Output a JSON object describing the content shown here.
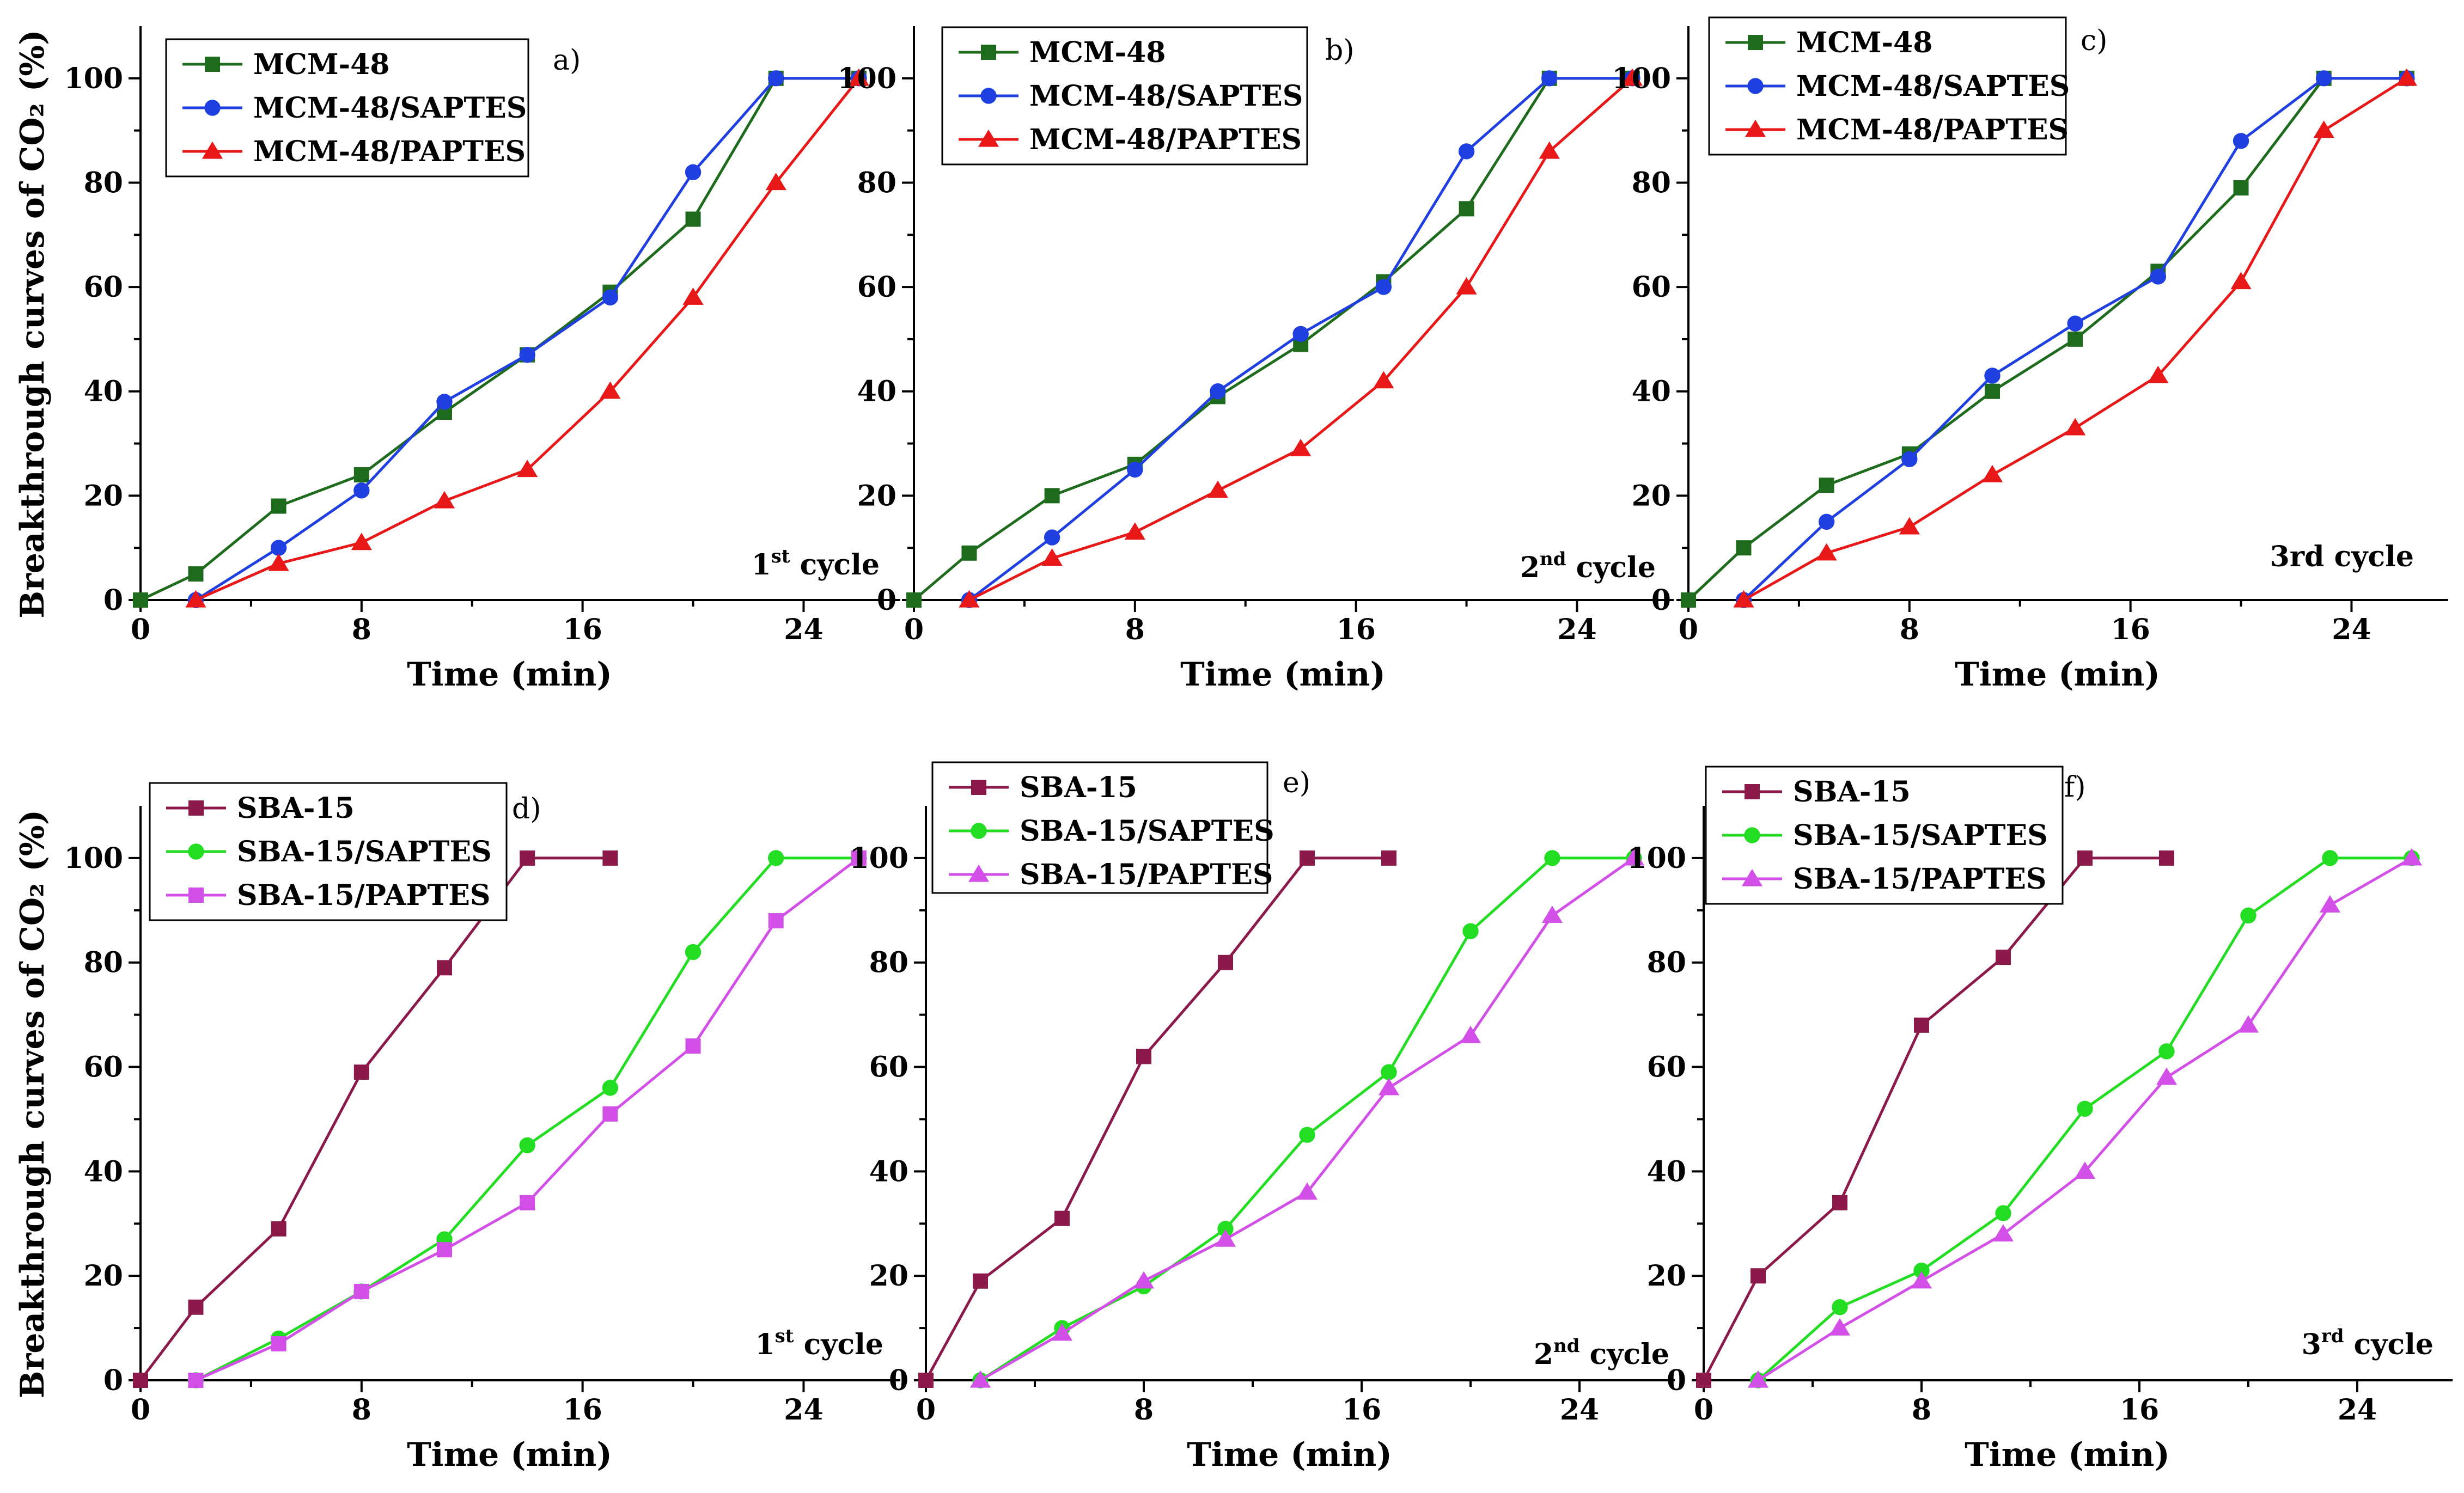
{
  "figure": {
    "ylabel": "Breakthrough curves of CO₂ (%)"
  },
  "chart_data": [
    {
      "type": "line",
      "panel": "a)",
      "cycle_label": {
        "main": "1",
        "sup": "st",
        "rest": " cycle"
      },
      "xlabel": "Time (min)",
      "ylabel": "Breakthrough curves of CO₂ (%)",
      "xlim": [
        0,
        27.5
      ],
      "ylim": [
        0,
        110
      ],
      "xticks": [
        0,
        8,
        16,
        24
      ],
      "yticks": [
        0,
        20,
        40,
        60,
        80,
        100
      ],
      "legend_position": "top-left",
      "series": [
        {
          "name": "MCM-48",
          "color": "#1e6b1e",
          "marker": "square",
          "x": [
            0,
            2,
            5,
            8,
            11,
            14,
            17,
            20,
            23,
            26
          ],
          "y": [
            0,
            5,
            18,
            24,
            36,
            47,
            59,
            73,
            100,
            100
          ]
        },
        {
          "name": "MCM-48/SAPTES",
          "color": "#1f3fe0",
          "marker": "circle",
          "x": [
            2,
            5,
            8,
            11,
            14,
            17,
            20,
            23,
            26
          ],
          "y": [
            0,
            10,
            21,
            38,
            47,
            58,
            82,
            100,
            100
          ]
        },
        {
          "name": "MCM-48/PAPTES",
          "color": "#e81818",
          "marker": "triangle",
          "x": [
            2,
            5,
            8,
            11,
            14,
            17,
            20,
            23,
            26
          ],
          "y": [
            0,
            7,
            11,
            19,
            25,
            40,
            58,
            80,
            100
          ]
        }
      ]
    },
    {
      "type": "line",
      "panel": "b)",
      "cycle_label": {
        "main": "2",
        "sup": "nd",
        "rest": " cycle"
      },
      "xlabel": "Time (min)",
      "ylabel": "",
      "xlim": [
        0,
        27.5
      ],
      "ylim": [
        0,
        110
      ],
      "xticks": [
        0,
        8,
        16,
        24
      ],
      "yticks": [
        0,
        20,
        40,
        60,
        80,
        100
      ],
      "legend_position": "top-left",
      "series": [
        {
          "name": "MCM-48",
          "color": "#1e6b1e",
          "marker": "square",
          "x": [
            0,
            2,
            5,
            8,
            11,
            14,
            17,
            20,
            23,
            26
          ],
          "y": [
            0,
            9,
            20,
            26,
            39,
            49,
            61,
            75,
            100,
            100
          ]
        },
        {
          "name": "MCM-48/SAPTES",
          "color": "#1f3fe0",
          "marker": "circle",
          "x": [
            2,
            5,
            8,
            11,
            14,
            17,
            20,
            23,
            26
          ],
          "y": [
            0,
            12,
            25,
            40,
            51,
            60,
            86,
            100,
            100
          ]
        },
        {
          "name": "MCM-48/PAPTES",
          "color": "#e81818",
          "marker": "triangle",
          "x": [
            2,
            5,
            8,
            11,
            14,
            17,
            20,
            23,
            26
          ],
          "y": [
            0,
            8,
            13,
            21,
            29,
            42,
            60,
            86,
            100
          ]
        }
      ]
    },
    {
      "type": "line",
      "panel": "c)",
      "cycle_label": {
        "main": "3rd cycle",
        "sup": "",
        "rest": ""
      },
      "xlabel": "Time (min)",
      "ylabel": "",
      "xlim": [
        0,
        27.5
      ],
      "ylim": [
        0,
        110
      ],
      "xticks": [
        0,
        8,
        16,
        24
      ],
      "yticks": [
        0,
        20,
        40,
        60,
        80,
        100
      ],
      "legend_position": "top-left",
      "series": [
        {
          "name": "MCM-48",
          "color": "#1e6b1e",
          "marker": "square",
          "x": [
            0,
            2,
            5,
            8,
            11,
            14,
            17,
            20,
            23,
            26
          ],
          "y": [
            0,
            10,
            22,
            28,
            40,
            50,
            63,
            79,
            100,
            100
          ]
        },
        {
          "name": "MCM-48/SAPTES",
          "color": "#1f3fe0",
          "marker": "circle",
          "x": [
            2,
            5,
            8,
            11,
            14,
            17,
            20,
            23,
            26
          ],
          "y": [
            0,
            15,
            27,
            43,
            53,
            62,
            88,
            100,
            100
          ]
        },
        {
          "name": "MCM-48/PAPTES",
          "color": "#e81818",
          "marker": "triangle",
          "x": [
            2,
            5,
            8,
            11,
            14,
            17,
            20,
            23,
            26
          ],
          "y": [
            0,
            9,
            14,
            24,
            33,
            43,
            61,
            90,
            100
          ]
        }
      ]
    },
    {
      "type": "line",
      "panel": "d)",
      "cycle_label": {
        "main": "1",
        "sup": "st",
        "rest": " cycle"
      },
      "xlabel": "Time (min)",
      "ylabel": "Breakthrough curves of CO₂ (%)",
      "xlim": [
        0,
        27.5
      ],
      "ylim": [
        0,
        110
      ],
      "xticks": [
        0,
        8,
        16,
        24
      ],
      "yticks": [
        0,
        20,
        40,
        60,
        80,
        100
      ],
      "legend_position": "top-left",
      "series": [
        {
          "name": "SBA-15",
          "color": "#8b1a4a",
          "marker": "square",
          "x": [
            0,
            2,
            5,
            8,
            11,
            14,
            17
          ],
          "y": [
            0,
            14,
            29,
            59,
            79,
            100,
            100
          ]
        },
        {
          "name": "SBA-15/SAPTES",
          "color": "#22dd22",
          "marker": "circle",
          "x": [
            2,
            5,
            8,
            11,
            14,
            17,
            20,
            23,
            26
          ],
          "y": [
            0,
            8,
            17,
            27,
            45,
            56,
            82,
            100,
            100
          ]
        },
        {
          "name": "SBA-15/PAPTES",
          "color": "#d24fe8",
          "marker": "square",
          "x": [
            2,
            5,
            8,
            11,
            14,
            17,
            20,
            23,
            26
          ],
          "y": [
            0,
            7,
            17,
            25,
            34,
            51,
            64,
            88,
            100
          ]
        }
      ]
    },
    {
      "type": "line",
      "panel": "e)",
      "cycle_label": {
        "main": "2",
        "sup": "nd",
        "rest": " cycle"
      },
      "xlabel": "Time (min)",
      "ylabel": "",
      "xlim": [
        0,
        27.5
      ],
      "ylim": [
        0,
        110
      ],
      "xticks": [
        0,
        8,
        16,
        24
      ],
      "yticks": [
        0,
        20,
        40,
        60,
        80,
        100
      ],
      "legend_position": "top-left",
      "series": [
        {
          "name": "SBA-15",
          "color": "#8b1a4a",
          "marker": "square",
          "x": [
            0,
            2,
            5,
            8,
            11,
            14,
            17
          ],
          "y": [
            0,
            19,
            31,
            62,
            80,
            100,
            100
          ]
        },
        {
          "name": "SBA-15/SAPTES",
          "color": "#22dd22",
          "marker": "circle",
          "x": [
            2,
            5,
            8,
            11,
            14,
            17,
            20,
            23,
            26
          ],
          "y": [
            0,
            10,
            18,
            29,
            47,
            59,
            86,
            100,
            100
          ]
        },
        {
          "name": "SBA-15/PAPTES",
          "color": "#d24fe8",
          "marker": "triangle",
          "x": [
            2,
            5,
            8,
            11,
            14,
            17,
            20,
            23,
            26
          ],
          "y": [
            0,
            9,
            19,
            27,
            36,
            56,
            66,
            89,
            100
          ]
        }
      ]
    },
    {
      "type": "line",
      "panel": "f)",
      "cycle_label": {
        "main": "3",
        "sup": "rd",
        "rest": " cycle"
      },
      "xlabel": "Time (min)",
      "ylabel": "",
      "xlim": [
        0,
        27.5
      ],
      "ylim": [
        0,
        110
      ],
      "xticks": [
        0,
        8,
        16,
        24
      ],
      "yticks": [
        0,
        20,
        40,
        60,
        80,
        100
      ],
      "legend_position": "top-left",
      "series": [
        {
          "name": "SBA-15",
          "color": "#8b1a4a",
          "marker": "square",
          "x": [
            0,
            2,
            5,
            8,
            11,
            14,
            17
          ],
          "y": [
            0,
            20,
            34,
            68,
            81,
            100,
            100
          ]
        },
        {
          "name": "SBA-15/SAPTES",
          "color": "#22dd22",
          "marker": "circle",
          "x": [
            2,
            5,
            8,
            11,
            14,
            17,
            20,
            23,
            26
          ],
          "y": [
            0,
            14,
            21,
            32,
            52,
            63,
            89,
            100,
            100
          ]
        },
        {
          "name": "SBA-15/PAPTES",
          "color": "#d24fe8",
          "marker": "triangle",
          "x": [
            2,
            5,
            8,
            11,
            14,
            17,
            20,
            23,
            26
          ],
          "y": [
            0,
            10,
            19,
            28,
            40,
            58,
            68,
            91,
            100
          ]
        }
      ]
    }
  ]
}
